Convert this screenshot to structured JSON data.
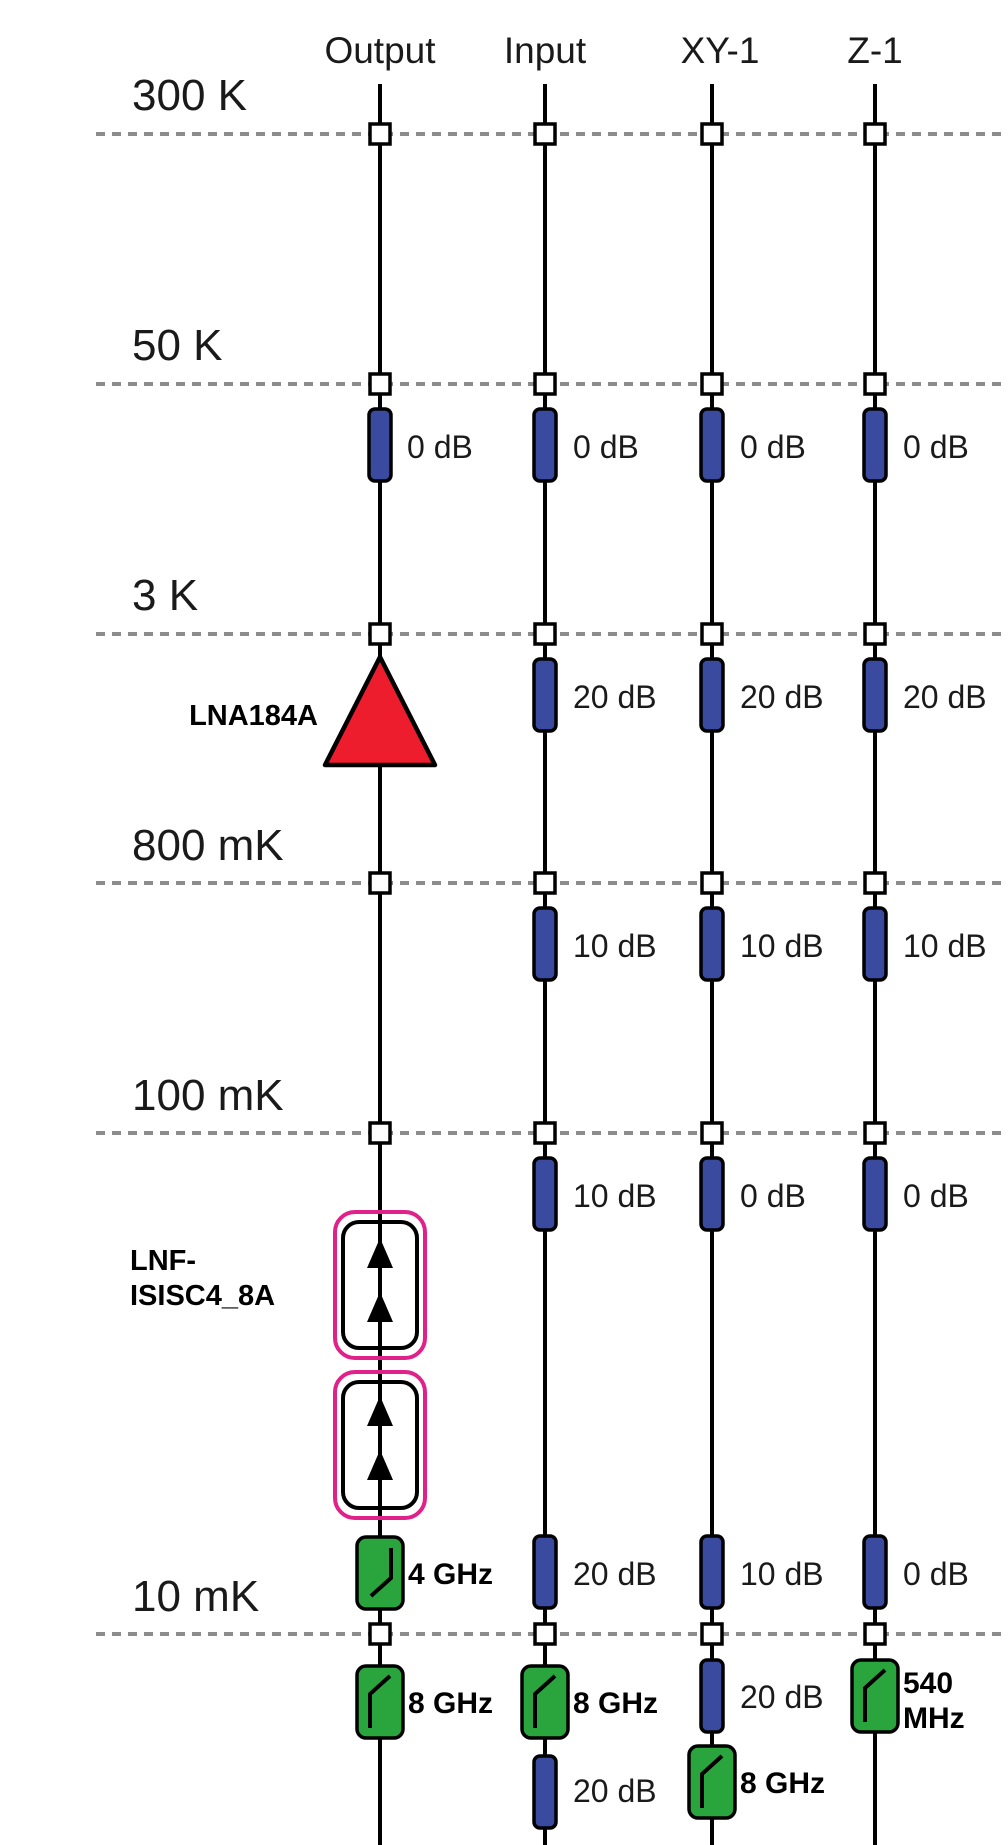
{
  "columns": [
    {
      "id": "output",
      "label": "Output"
    },
    {
      "id": "input",
      "label": "Input"
    },
    {
      "id": "xy1",
      "label": "XY-1"
    },
    {
      "id": "z1",
      "label": "Z-1"
    }
  ],
  "stages": [
    {
      "id": "300k",
      "label": "300 K"
    },
    {
      "id": "50k",
      "label": "50 K"
    },
    {
      "id": "3k",
      "label": "3 K"
    },
    {
      "id": "800mk",
      "label": "800 mK"
    },
    {
      "id": "100mk",
      "label": "100 mK"
    },
    {
      "id": "10mk",
      "label": "10 mK"
    }
  ],
  "amplifier": {
    "label": "LNA184A",
    "color": "#ee1d2e"
  },
  "isolator": {
    "label_line1": "LNF-",
    "label_line2": "ISISC4_8A",
    "border_color": "#e0218a"
  },
  "attenuators": {
    "color": "#3a4a9e",
    "output_50k": "0 dB",
    "input_50k": "0 dB",
    "xy1_50k": "0 dB",
    "z1_50k": "0 dB",
    "input_3k": "20 dB",
    "xy1_3k": "20 dB",
    "z1_3k": "20 dB",
    "input_800mk": "10 dB",
    "xy1_800mk": "10 dB",
    "z1_800mk": "10 dB",
    "input_100mk": "10 dB",
    "xy1_100mk": "0 dB",
    "z1_100mk": "0 dB",
    "input_pre10mk": "20 dB",
    "xy1_pre10mk": "10 dB",
    "z1_pre10mk": "0 dB",
    "xy1_post10mk": "20 dB",
    "input_bottom": "20 dB"
  },
  "filters": {
    "color": "#2aa43c",
    "output_pre10mk": "4 GHz",
    "output_post10mk": "8 GHz",
    "input_post10mk": "8 GHz",
    "xy1_bottom": "8 GHz",
    "z1_line1": "540",
    "z1_line2": "MHz"
  }
}
